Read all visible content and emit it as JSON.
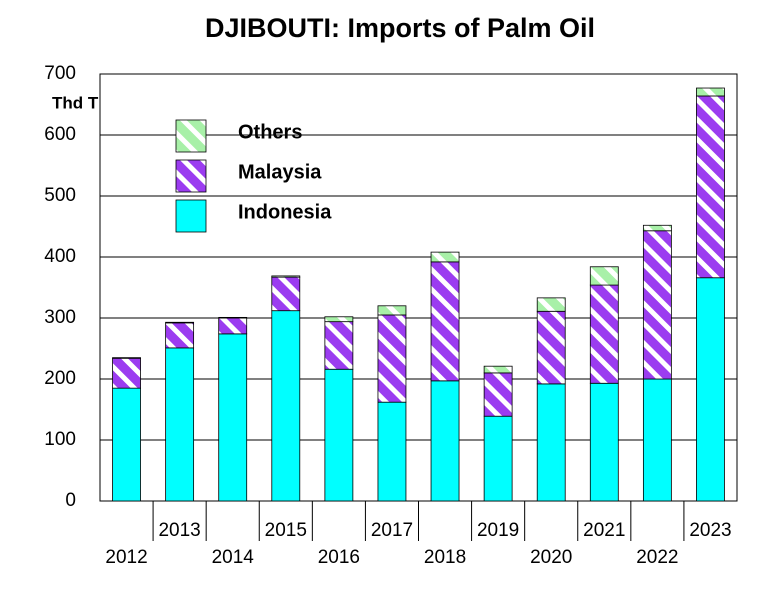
{
  "chart_data": {
    "type": "stacked-bar",
    "title": "DJIBOUTI: Imports of Palm Oil",
    "y_label": "Thd T",
    "categories": [
      "2012",
      "2013",
      "2014",
      "2015",
      "2016",
      "2017",
      "2018",
      "2019",
      "2020",
      "2021",
      "2022",
      "2023"
    ],
    "series": [
      {
        "name": "Indonesia",
        "color": "#00ffff",
        "hatch": false,
        "values": [
          185,
          251,
          274,
          312,
          216,
          162,
          197,
          139,
          192,
          193,
          200,
          366
        ]
      },
      {
        "name": "Malaysia",
        "color": "#9b3cf0",
        "hatch": true,
        "values": [
          49,
          41,
          26,
          55,
          78,
          143,
          195,
          71,
          119,
          161,
          243,
          298
        ]
      },
      {
        "name": "Others",
        "color": "#a8f0a8",
        "hatch": true,
        "values": [
          1,
          1,
          1,
          2,
          8,
          15,
          16,
          11,
          22,
          30,
          9,
          13
        ]
      }
    ],
    "ylim": [
      0,
      700
    ],
    "yticks": [
      0,
      100,
      200,
      300,
      400,
      500,
      600,
      700
    ],
    "grid": true,
    "legend": "top-left"
  }
}
